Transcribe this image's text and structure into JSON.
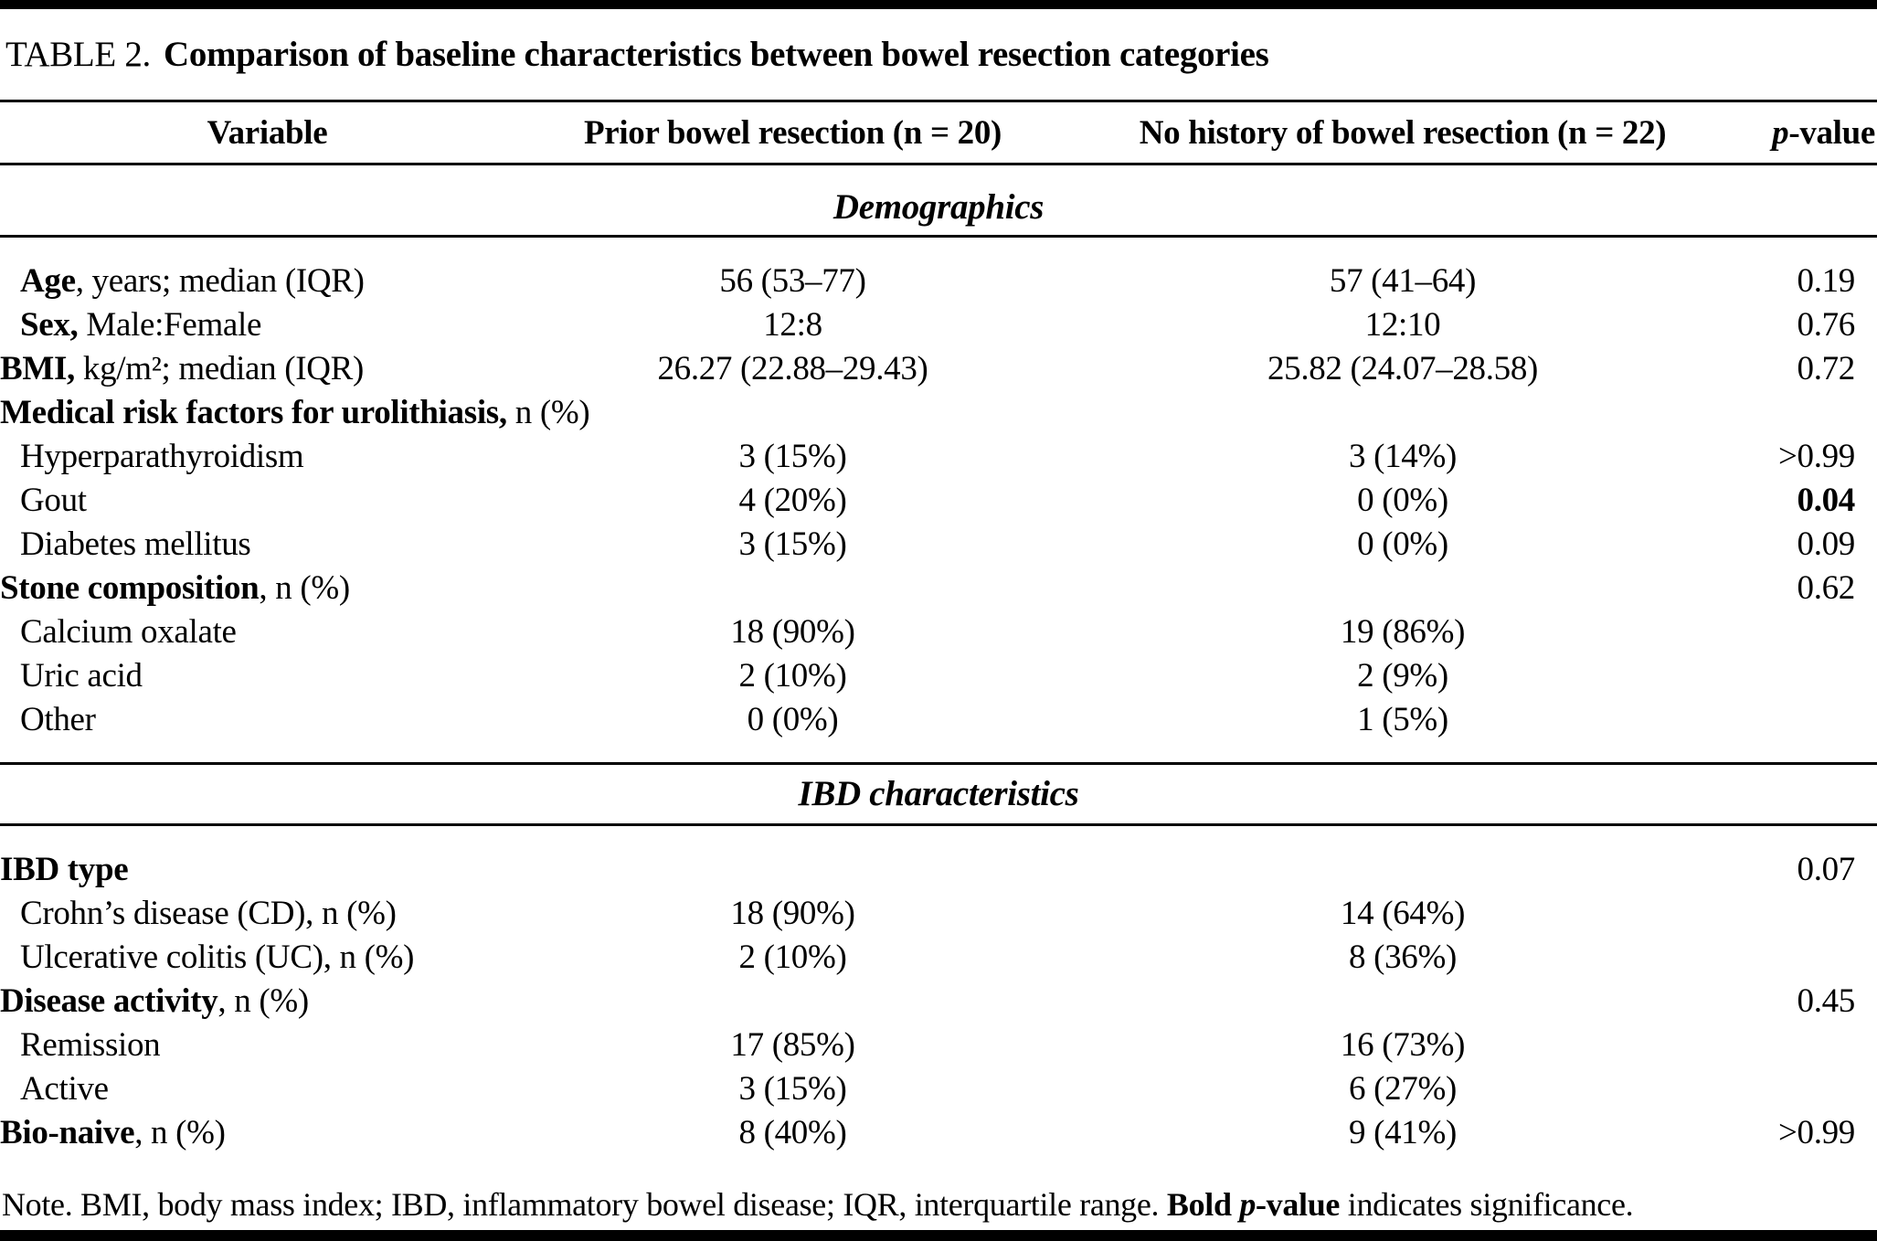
{
  "table": {
    "title_label": "TABLE 2.",
    "title_text": "Comparison of baseline characteristics between bowel resection categories",
    "columns": {
      "variable": "Variable",
      "group1": "Prior bowel resection (n = 20)",
      "group2": "No history of bowel resection (n = 22)",
      "p_italic": "p",
      "p_rest": "-value"
    },
    "sections": [
      {
        "heading": "Demographics",
        "rows": [
          {
            "bold": "Age",
            "rest": ", years; median (IQR)",
            "col1": "56 (53–77)",
            "col2": "57 (41–64)",
            "p": "0.19"
          },
          {
            "bold": "Sex,",
            "rest": " Male:Female",
            "col1": "12:8",
            "col2": "12:10",
            "p": "0.76"
          },
          {
            "bold": "BMI,",
            "rest": " kg/m²; median (IQR)",
            "col1": "26.27 (22.88–29.43)",
            "col2": "25.82 (24.07–28.58)",
            "p": "0.72"
          },
          {
            "bold": "Medical risk factors for urolithiasis,",
            "rest": " n (%)",
            "col1": "",
            "col2": "",
            "p": ""
          },
          {
            "bold": "",
            "rest": "Hyperparathyroidism",
            "col1": "3 (15%)",
            "col2": "3 (14%)",
            "p": ">0.99"
          },
          {
            "bold": "",
            "rest": "Gout",
            "col1": "4 (20%)",
            "col2": "0 (0%)",
            "p": "0.04"
          },
          {
            "bold": "",
            "rest": "Diabetes mellitus",
            "col1": "3 (15%)",
            "col2": "0 (0%)",
            "p": "0.09"
          },
          {
            "bold": "Stone composition",
            "rest": ", n (%)",
            "col1": "",
            "col2": "",
            "p": "0.62"
          },
          {
            "bold": "",
            "rest": "Calcium oxalate",
            "col1": "18 (90%)",
            "col2": "19 (86%)",
            "p": ""
          },
          {
            "bold": "",
            "rest": "Uric acid",
            "col1": "2 (10%)",
            "col2": "2 (9%)",
            "p": ""
          },
          {
            "bold": "",
            "rest": "Other",
            "col1": "0 (0%)",
            "col2": "1 (5%)",
            "p": ""
          }
        ]
      },
      {
        "heading": "IBD characteristics",
        "rows": [
          {
            "bold": "IBD type",
            "rest": "",
            "col1": "",
            "col2": "",
            "p": "0.07"
          },
          {
            "bold": "",
            "rest": "Crohn’s disease (CD), n (%)",
            "col1": "18 (90%)",
            "col2": "14 (64%)",
            "p": ""
          },
          {
            "bold": "",
            "rest": "Ulcerative colitis (UC), n (%)",
            "col1": "2 (10%)",
            "col2": "8 (36%)",
            "p": ""
          },
          {
            "bold": "Disease activity",
            "rest": ", n (%)",
            "col1": "",
            "col2": "",
            "p": "0.45"
          },
          {
            "bold": "",
            "rest": "Remission",
            "col1": "17 (85%)",
            "col2": "16 (73%)",
            "p": ""
          },
          {
            "bold": "",
            "rest": "Active",
            "col1": "3 (15%)",
            "col2": "6 (27%)",
            "p": ""
          },
          {
            "bold": "Bio-naive",
            "rest": ", n (%)",
            "col1": "8 (40%)",
            "col2": "9 (41%)",
            "p": ">0.99"
          }
        ]
      }
    ],
    "note": {
      "prefix": "Note. BMI, body mass index; IBD, inflammatory bowel disease; IQR, interquartile range. ",
      "bold1": "Bold ",
      "bold_p": "p",
      "bold2": "-value",
      "suffix": " indicates significance."
    }
  }
}
